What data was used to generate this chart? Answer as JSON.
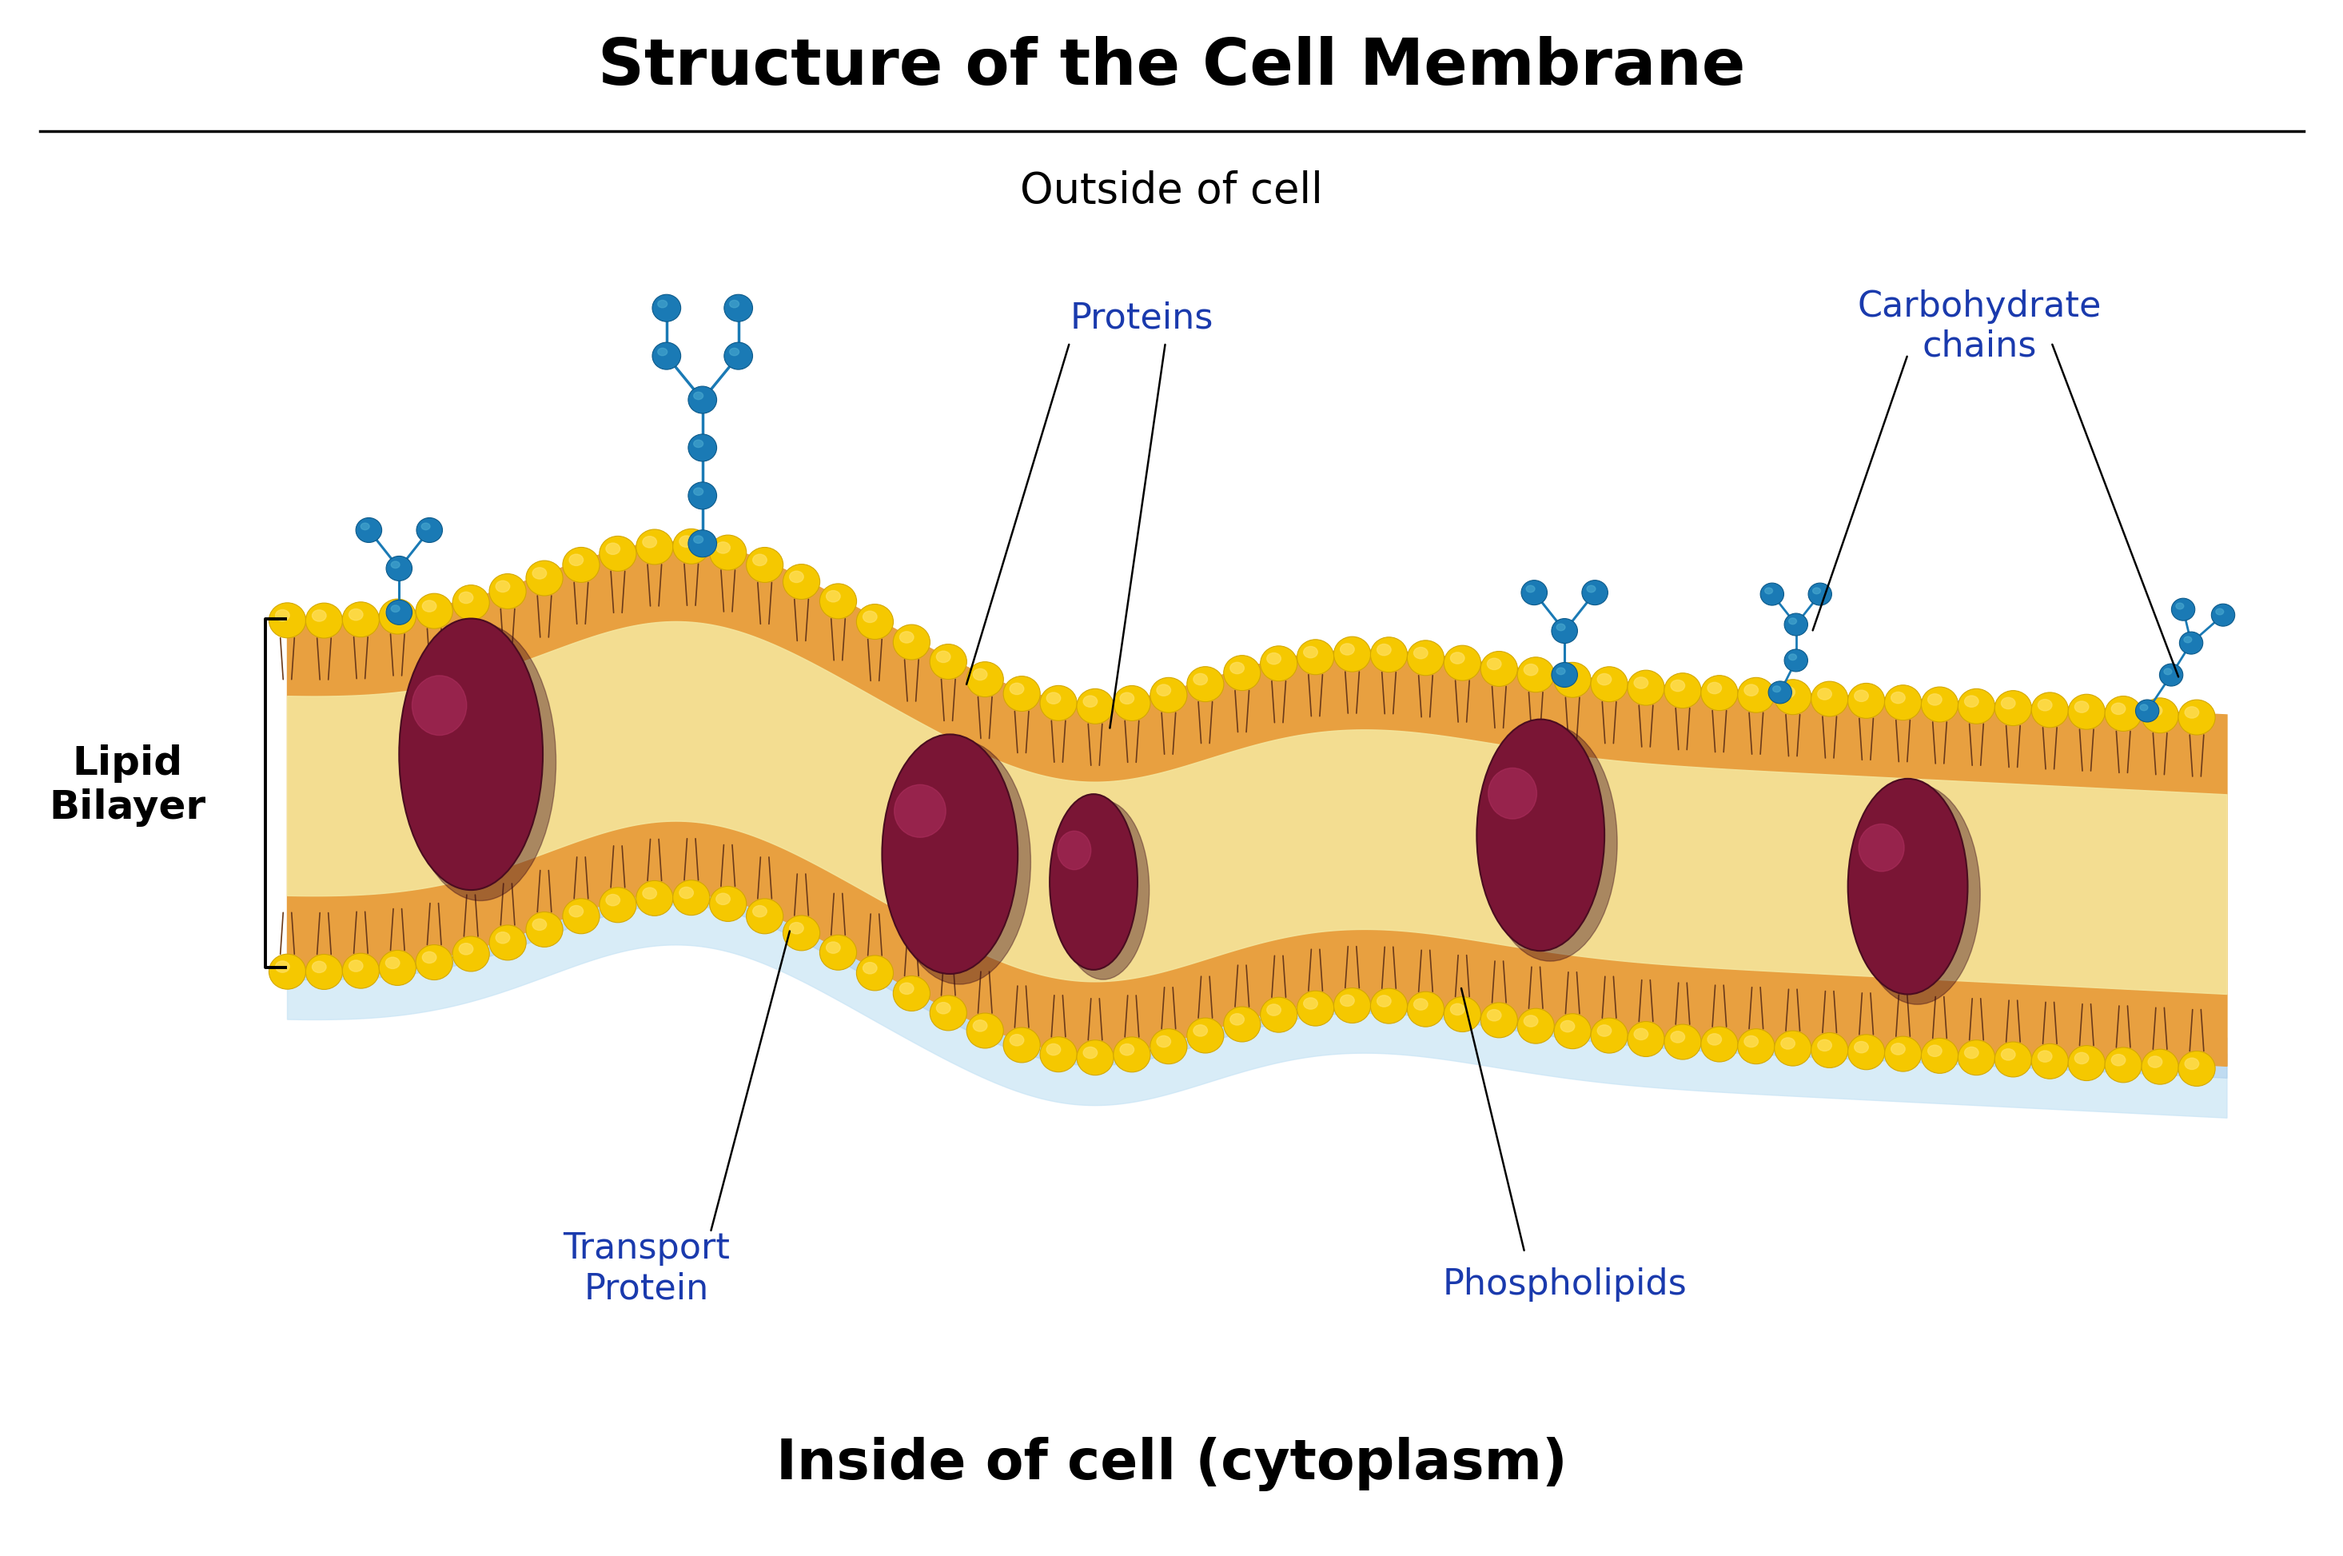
{
  "title": "Structure of the Cell Membrane",
  "outside_label": "Outside of cell",
  "inside_label": "Inside of cell (cytoplasm)",
  "lipid_bilayer_label": "Lipid\nBilayer",
  "proteins_label": "Proteins",
  "transport_protein_label": "Transport\nProtein",
  "phospholipids_label": "Phospholipids",
  "carbohydrate_label": "Carbohydrate\nchains",
  "title_fontsize": 58,
  "outside_fontsize": 38,
  "inside_fontsize": 50,
  "label_fontsize": 32,
  "lipid_fontsize": 36,
  "label_color": "#1a3aad",
  "bg_color": "#ffffff",
  "membrane_orange": "#e8a040",
  "membrane_orange_light": "#f0b858",
  "phospholipid_head_color": "#f5c800",
  "phospholipid_head_edge": "#d4a800",
  "protein_color": "#7a1535",
  "protein_highlight": "#b03060",
  "carbo_color": "#1a7ab5",
  "inner_fill_color": "#f5e8a0",
  "shadow_color": "#c8e4f5",
  "shadow_color2": "#a8ccec"
}
